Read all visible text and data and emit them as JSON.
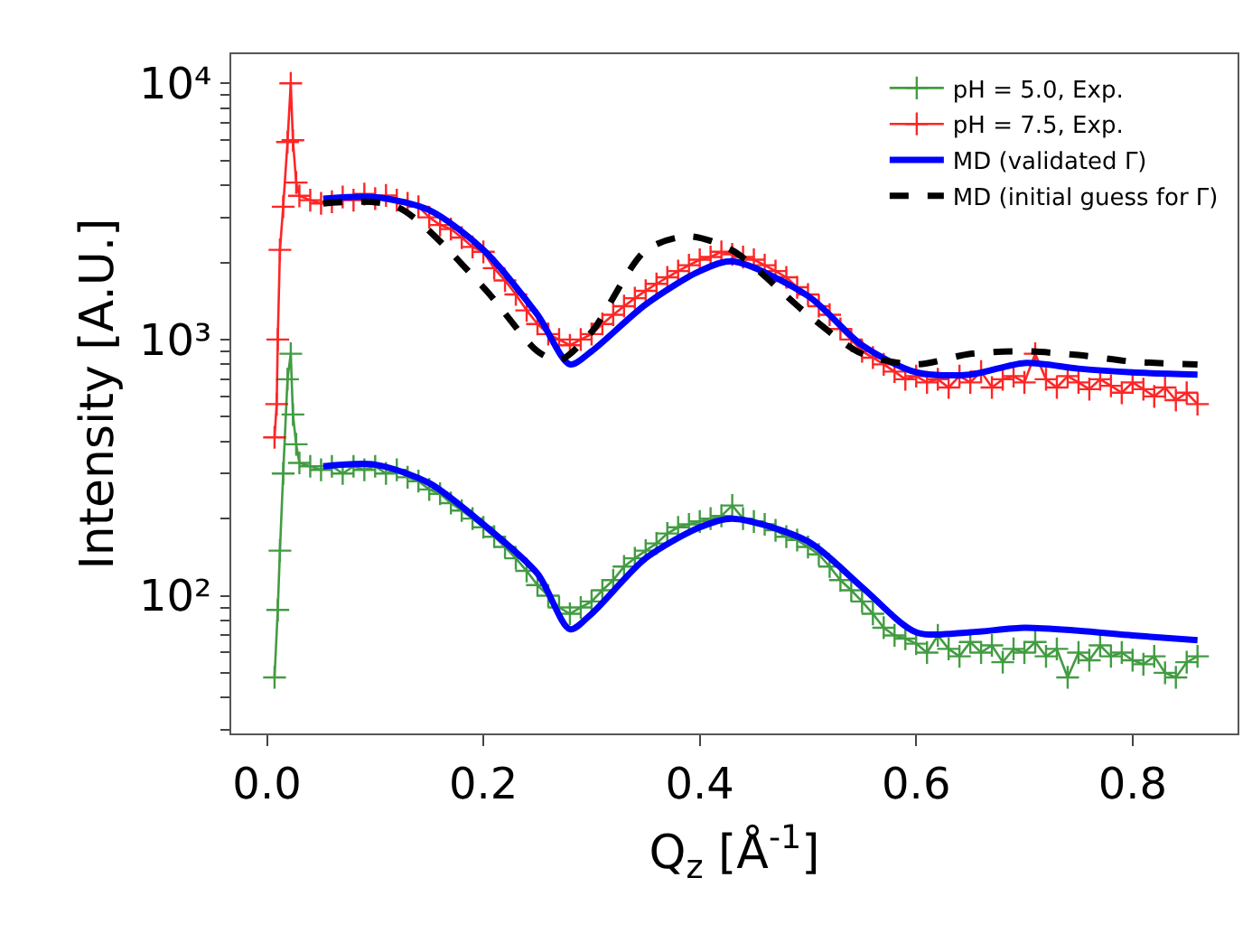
{
  "chart_data": {
    "type": "line",
    "xlabel": "Q$_{z}$ [Å$^{-1}$]",
    "ylabel": "Intensity [A.U.]",
    "log": "y",
    "legend": "top right",
    "xlim": [
      -0.033,
      0.897
    ],
    "xticks": [
      {
        "value": 0,
        "label": "0.0"
      },
      0.2,
      0.4,
      0.6,
      0.8
    ],
    "ylim": [
      29,
      13000
    ],
    "yticks": [
      {
        "value": 30,
        "label": null
      },
      {
        "value": 40,
        "label": null
      },
      {
        "value": 50,
        "label": null
      },
      {
        "value": 60,
        "label": null
      },
      {
        "value": 70,
        "label": null
      },
      {
        "value": 80,
        "label": null
      },
      {
        "value": 90,
        "label": null
      },
      {
        "value": 100,
        "label": "10²"
      },
      {
        "value": 200,
        "label": null
      },
      {
        "value": 300,
        "label": null
      },
      {
        "value": 400,
        "label": null
      },
      {
        "value": 500,
        "label": null
      },
      {
        "value": 600,
        "label": null
      },
      {
        "value": 700,
        "label": null
      },
      {
        "value": 800,
        "label": null
      },
      {
        "value": 900,
        "label": null
      },
      {
        "value": 1000,
        "label": "10³"
      },
      {
        "value": 2000,
        "label": null
      },
      {
        "value": 3000,
        "label": null
      },
      {
        "value": 4000,
        "label": null
      },
      {
        "value": 5000,
        "label": null
      },
      {
        "value": 6000,
        "label": null
      },
      {
        "value": 7000,
        "label": null
      },
      {
        "value": 8000,
        "label": null
      },
      {
        "value": 9000,
        "label": null
      },
      {
        "value": 10000,
        "label": "10⁴"
      }
    ],
    "series": [
      {
        "name": "pH = 5.0, Exp.",
        "color": "#228b22",
        "marker": "cross",
        "x": [
          0.007,
          0.01,
          0.012,
          0.015,
          0.019,
          0.022,
          0.024,
          0.027,
          0.03,
          0.04,
          0.05,
          0.06,
          0.07,
          0.08,
          0.09,
          0.1,
          0.11,
          0.12,
          0.13,
          0.14,
          0.15,
          0.16,
          0.17,
          0.18,
          0.19,
          0.2,
          0.21,
          0.22,
          0.23,
          0.24,
          0.25,
          0.26,
          0.27,
          0.28,
          0.29,
          0.3,
          0.31,
          0.32,
          0.33,
          0.34,
          0.35,
          0.36,
          0.37,
          0.38,
          0.39,
          0.4,
          0.41,
          0.42,
          0.43,
          0.44,
          0.45,
          0.46,
          0.47,
          0.48,
          0.49,
          0.5,
          0.51,
          0.52,
          0.53,
          0.54,
          0.55,
          0.56,
          0.57,
          0.58,
          0.59,
          0.6,
          0.61,
          0.62,
          0.63,
          0.64,
          0.65,
          0.66,
          0.67,
          0.68,
          0.69,
          0.7,
          0.71,
          0.72,
          0.73,
          0.74,
          0.75,
          0.76,
          0.77,
          0.78,
          0.79,
          0.8,
          0.81,
          0.82,
          0.83,
          0.84,
          0.85,
          0.86
        ],
        "values": [
          48,
          88,
          150,
          300,
          700,
          880,
          510,
          390,
          330,
          320,
          310,
          320,
          300,
          320,
          310,
          320,
          300,
          310,
          290,
          280,
          260,
          250,
          230,
          215,
          200,
          185,
          170,
          155,
          140,
          125,
          110,
          100,
          90,
          85,
          90,
          95,
          105,
          115,
          130,
          140,
          150,
          160,
          175,
          185,
          190,
          195,
          200,
          205,
          225,
          200,
          195,
          190,
          180,
          170,
          165,
          155,
          145,
          130,
          115,
          105,
          95,
          85,
          75,
          70,
          68,
          65,
          60,
          70,
          62,
          58,
          66,
          60,
          64,
          55,
          62,
          60,
          66,
          58,
          62,
          48,
          60,
          56,
          64,
          58,
          60,
          56,
          54,
          58,
          50,
          48,
          55,
          58
        ]
      },
      {
        "name": "pH = 7.5, Exp.",
        "color": "#ff0000",
        "marker": "cross",
        "x": [
          0.007,
          0.009,
          0.01,
          0.012,
          0.015,
          0.019,
          0.022,
          0.024,
          0.027,
          0.03,
          0.04,
          0.05,
          0.06,
          0.07,
          0.08,
          0.09,
          0.1,
          0.11,
          0.12,
          0.13,
          0.14,
          0.15,
          0.16,
          0.17,
          0.18,
          0.19,
          0.2,
          0.21,
          0.22,
          0.23,
          0.24,
          0.25,
          0.26,
          0.27,
          0.28,
          0.29,
          0.3,
          0.31,
          0.32,
          0.33,
          0.34,
          0.35,
          0.36,
          0.37,
          0.38,
          0.39,
          0.4,
          0.41,
          0.42,
          0.43,
          0.44,
          0.45,
          0.46,
          0.47,
          0.48,
          0.49,
          0.5,
          0.51,
          0.52,
          0.53,
          0.54,
          0.55,
          0.56,
          0.57,
          0.58,
          0.59,
          0.6,
          0.61,
          0.62,
          0.63,
          0.64,
          0.65,
          0.66,
          0.67,
          0.68,
          0.69,
          0.7,
          0.71,
          0.72,
          0.73,
          0.74,
          0.75,
          0.76,
          0.77,
          0.78,
          0.79,
          0.8,
          0.81,
          0.82,
          0.83,
          0.84,
          0.85,
          0.86
        ],
        "values": [
          415,
          560,
          1000,
          2240,
          3300,
          5900,
          10000,
          6000,
          4100,
          3640,
          3500,
          3400,
          3450,
          3600,
          3500,
          3700,
          3550,
          3650,
          3500,
          3400,
          3300,
          3000,
          2800,
          2700,
          2500,
          2300,
          2200,
          1900,
          1700,
          1500,
          1300,
          1150,
          1050,
          1000,
          950,
          1000,
          1050,
          1150,
          1250,
          1350,
          1450,
          1550,
          1650,
          1750,
          1850,
          1950,
          2050,
          2100,
          2200,
          2150,
          2100,
          2050,
          1950,
          1850,
          1750,
          1600,
          1500,
          1350,
          1250,
          1100,
          1000,
          900,
          850,
          800,
          750,
          700,
          720,
          680,
          700,
          650,
          720,
          680,
          750,
          650,
          700,
          720,
          680,
          880,
          700,
          650,
          720,
          680,
          640,
          700,
          660,
          620,
          680,
          640,
          600,
          650,
          580,
          620,
          560
        ]
      },
      {
        "name": "MD (validated Γ)",
        "color": "#0000ff",
        "line_style": "solid",
        "x": [
          0.052,
          0.1,
          0.15,
          0.2,
          0.25,
          0.28,
          0.3,
          0.35,
          0.4,
          0.43,
          0.5,
          0.55,
          0.6,
          0.65,
          0.7,
          0.75,
          0.8,
          0.86
        ],
        "values": [
          3550,
          3600,
          3200,
          2240,
          1250,
          800,
          900,
          1370,
          1850,
          2020,
          1480,
          950,
          745,
          730,
          810,
          770,
          745,
          730
        ]
      },
      {
        "color": "#0000ff",
        "line_style": "solid",
        "x": [
          0.052,
          0.1,
          0.15,
          0.2,
          0.25,
          0.28,
          0.3,
          0.35,
          0.4,
          0.43,
          0.5,
          0.55,
          0.6,
          0.65,
          0.7,
          0.75,
          0.8,
          0.86
        ],
        "values": [
          320,
          325,
          275,
          190,
          122,
          74,
          85,
          140,
          185,
          200,
          163,
          108,
          72,
          72,
          75,
          73,
          70,
          67
        ]
      },
      {
        "name": "MD (initial guess for Γ)",
        "color": "#000000",
        "line_style": "dashed",
        "x": [
          0.052,
          0.12,
          0.2,
          0.25,
          0.27,
          0.3,
          0.35,
          0.39,
          0.43,
          0.5,
          0.55,
          0.6,
          0.65,
          0.7,
          0.75,
          0.8,
          0.86
        ],
        "values": [
          3400,
          3300,
          1600,
          900,
          830,
          1070,
          2230,
          2530,
          2230,
          1250,
          880,
          800,
          880,
          900,
          870,
          820,
          800
        ]
      }
    ]
  }
}
